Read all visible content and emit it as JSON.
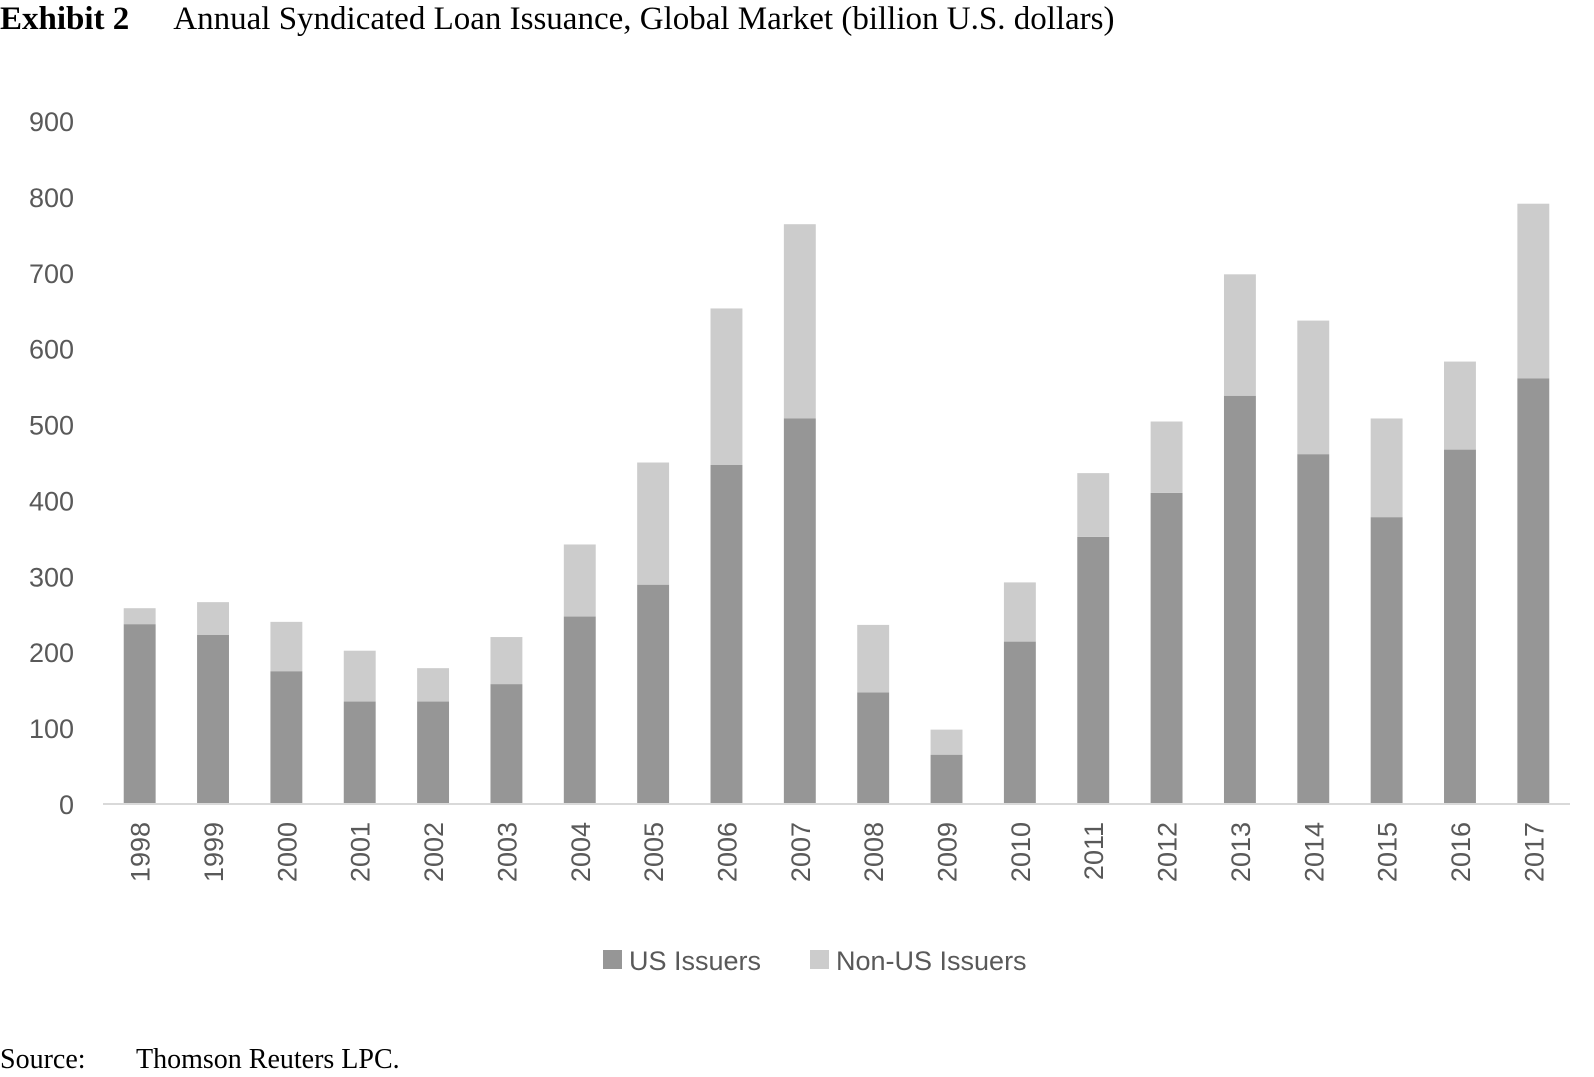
{
  "header": {
    "exhibit_label": "Exhibit 2",
    "title": "Annual Syndicated Loan Issuance, Global Market (billion U.S. dollars)"
  },
  "source": {
    "label": "Source:",
    "text": "Thomson Reuters LPC."
  },
  "chart_data": {
    "type": "bar",
    "stacked": true,
    "title": "Annual Syndicated Loan Issuance, Global Market (billion U.S. dollars)",
    "xlabel": "",
    "ylabel": "",
    "ylim": [
      0,
      900
    ],
    "yticks": [
      0,
      100,
      200,
      300,
      400,
      500,
      600,
      700,
      800,
      900
    ],
    "grid": false,
    "legend_position": "bottom",
    "categories": [
      "1998",
      "1999",
      "2000",
      "2001",
      "2002",
      "2003",
      "2004",
      "2005",
      "2006",
      "2007",
      "2008",
      "2009",
      "2010",
      "2011",
      "2012",
      "2013",
      "2014",
      "2015",
      "2016",
      "2017"
    ],
    "series": [
      {
        "name": "US Issuers",
        "color": "#969696",
        "values": [
          237,
          223,
          175,
          135,
          135,
          158,
          247,
          289,
          447,
          508,
          147,
          65,
          214,
          352,
          410,
          538,
          461,
          378,
          467,
          561
        ]
      },
      {
        "name": "Non-US Issuers",
        "color": "#cccccc",
        "values": [
          21,
          43,
          65,
          67,
          44,
          62,
          95,
          161,
          206,
          256,
          89,
          33,
          78,
          84,
          94,
          160,
          176,
          130,
          116,
          230
        ]
      }
    ]
  }
}
